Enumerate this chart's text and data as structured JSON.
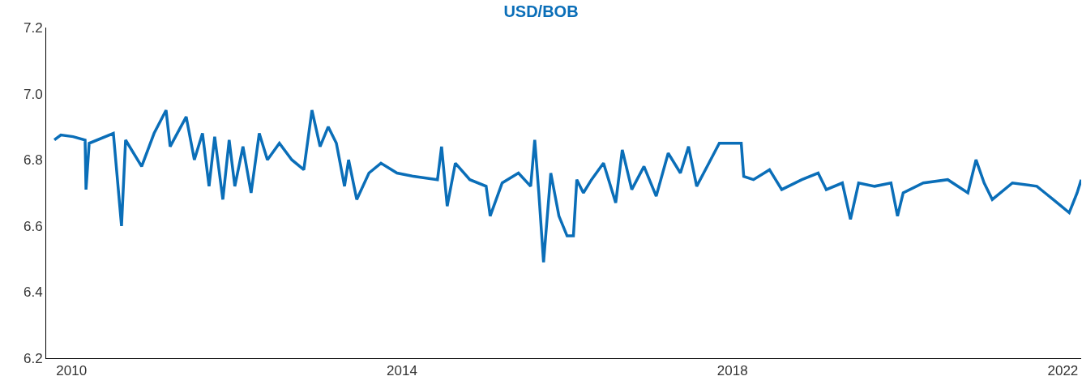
{
  "chart_data": {
    "type": "line",
    "title": "USD/BOB",
    "grid": false,
    "marker": "none",
    "line_style": "solid",
    "xlim": [
      "2009-09-11",
      "2022-03-23"
    ],
    "xticks": [
      {
        "value": "2010-01-01",
        "label": "2010"
      },
      {
        "value": "2014-01-01",
        "label": "2014"
      },
      {
        "value": "2018-01-01",
        "label": "2018"
      },
      {
        "value": "2022-01-01",
        "label": "2022"
      }
    ],
    "ylim": [
      6.2,
      7.2
    ],
    "yticks": [
      6.2,
      6.4,
      6.6,
      6.8,
      {
        "value": 7,
        "label": "7.0"
      },
      7.2
    ],
    "x": [
      "2009-10-17",
      "2009-11-15",
      "2010-01-08",
      "2010-03-02",
      "2010-03-06",
      "2010-03-20",
      "2010-07-05",
      "2010-08-10",
      "2010-08-28",
      "2010-11-07",
      "2011-01-01",
      "2011-02-23",
      "2011-03-13",
      "2011-05-23",
      "2011-06-28",
      "2011-08-03",
      "2011-09-01",
      "2011-09-26",
      "2011-11-01",
      "2011-11-29",
      "2011-12-24",
      "2012-01-29",
      "2012-03-05",
      "2012-04-10",
      "2012-05-16",
      "2012-07-08",
      "2012-09-01",
      "2012-10-24",
      "2012-11-29",
      "2013-01-04",
      "2013-02-09",
      "2013-03-17",
      "2013-04-22",
      "2013-05-10",
      "2013-06-15",
      "2013-08-08",
      "2013-09-30",
      "2013-12-10",
      "2014-02-20",
      "2014-06-07",
      "2014-06-25",
      "2014-07-20",
      "2014-08-25",
      "2014-10-28",
      "2015-01-08",
      "2015-01-26",
      "2015-03-20",
      "2015-05-31",
      "2015-07-24",
      "2015-08-11",
      "2015-08-29",
      "2015-09-19",
      "2015-10-21",
      "2015-11-26",
      "2016-01-01",
      "2016-01-29",
      "2016-02-13",
      "2016-03-13",
      "2016-04-18",
      "2016-06-10",
      "2016-08-03",
      "2016-09-01",
      "2016-10-13",
      "2016-12-06",
      "2017-01-29",
      "2017-03-23",
      "2017-05-16",
      "2017-06-21",
      "2017-07-27",
      "2017-09-19",
      "2017-11-04",
      "2017-12-17",
      "2018-02-09",
      "2018-02-20",
      "2018-04-04",
      "2018-06-14",
      "2018-08-07",
      "2018-11-04",
      "2019-01-15",
      "2019-02-20",
      "2019-05-02",
      "2019-06-07",
      "2019-07-13",
      "2019-09-22",
      "2019-12-03",
      "2020-01-01",
      "2020-01-26",
      "2020-04-24",
      "2020-08-10",
      "2020-11-07",
      "2020-12-13",
      "2021-01-18",
      "2021-02-23",
      "2021-05-23",
      "2021-09-08",
      "2021-10-14",
      "2021-11-19",
      "2021-12-25",
      "2022-01-29",
      "2022-03-05",
      "2022-03-23"
    ],
    "series": [
      {
        "color": "#0a6eb8",
        "values": [
          6.86,
          6.875,
          6.87,
          6.86,
          6.71,
          6.85,
          6.88,
          6.6,
          6.86,
          6.78,
          6.88,
          6.95,
          6.84,
          6.93,
          6.8,
          6.88,
          6.72,
          6.87,
          6.68,
          6.86,
          6.72,
          6.84,
          6.7,
          6.88,
          6.8,
          6.85,
          6.8,
          6.77,
          6.95,
          6.84,
          6.9,
          6.85,
          6.72,
          6.8,
          6.68,
          6.76,
          6.79,
          6.76,
          6.75,
          6.74,
          6.84,
          6.66,
          6.79,
          6.74,
          6.72,
          6.63,
          6.73,
          6.76,
          6.72,
          6.86,
          6.7,
          6.49,
          6.76,
          6.63,
          6.57,
          6.57,
          6.74,
          6.7,
          6.74,
          6.79,
          6.67,
          6.83,
          6.71,
          6.78,
          6.69,
          6.82,
          6.76,
          6.84,
          6.72,
          6.79,
          6.85,
          6.85,
          6.85,
          6.75,
          6.74,
          6.77,
          6.71,
          6.74,
          6.76,
          6.71,
          6.73,
          6.62,
          6.73,
          6.72,
          6.73,
          6.63,
          6.7,
          6.73,
          6.74,
          6.7,
          6.8,
          6.73,
          6.68,
          6.73,
          6.72,
          6.7,
          6.68,
          6.66,
          6.64,
          6.7,
          6.74
        ]
      }
    ]
  }
}
